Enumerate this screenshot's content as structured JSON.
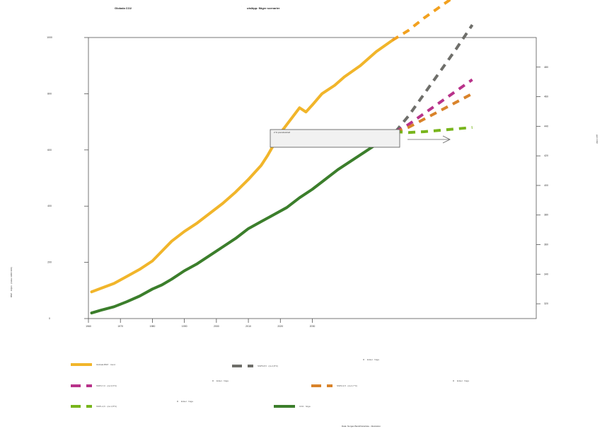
{
  "header": {
    "left_title": "Globala CO2",
    "right_title": "utsläpp: flägre scenarier",
    "dot": "·"
  },
  "axes": {
    "y_left_label": "BNP · miljön · (index 1960=100)",
    "y_right_label": "ppm CO2",
    "x_footer": "Data: Norges Bank/historiska · illustration"
  },
  "annotation": {
    "text": "2 % preindustriell"
  },
  "legend": [
    {
      "label": "Globala BNP · trend",
      "color": "#f1b52a",
      "style": "solid"
    },
    {
      "label": "SSP5-8,5 · (ca 4,8°C)",
      "color": "#6e6e6a",
      "style": "dashed"
    },
    {
      "label": "Enkel · höga",
      "color": "#bbbbbb",
      "style": "dot"
    },
    {
      "label": "SSP3-7,0 · (ca 3,6°C)",
      "color": "#b8338a",
      "style": "dashed"
    },
    {
      "label": "Enkel · höga",
      "color": "#bbbbbb",
      "style": "dot"
    },
    {
      "label": "SSP2-4,5 · (ca 2,7°C)",
      "color": "#d9832a",
      "style": "dashed"
    },
    {
      "label": "Enkel · höga",
      "color": "#bbbbbb",
      "style": "dot"
    },
    {
      "label": "SSP1-2,6 · (ca 1,8°C)",
      "color": "#78b51c",
      "style": "dashed"
    },
    {
      "label": "Enkel · höga",
      "color": "#bbbbbb",
      "style": "dot"
    },
    {
      "label": "CO2 · höga",
      "color": "#3b7e2b",
      "style": "solid"
    }
  ],
  "chart_data": {
    "type": "line",
    "title": "Globala CO2 utsläpp: flägre scenarier",
    "xlim": [
      1960,
      2100
    ],
    "ylim_left": [
      0,
      1000
    ],
    "ylim_right": [
      310,
      500
    ],
    "x_ticks": [
      1960,
      1970,
      1980,
      1990,
      2000,
      2010,
      2020,
      2030
    ],
    "x_tick_labels": [
      "1960",
      "1970",
      "1980",
      "1990",
      "2000",
      "2010",
      "2020",
      "2030"
    ],
    "y_left_ticks": [
      0,
      200,
      400,
      600,
      800,
      1000
    ],
    "y_right_ticks": [
      320,
      340,
      360,
      380,
      400,
      420,
      440,
      460,
      480
    ],
    "series": [
      {
        "name": "Globala BNP · trend",
        "color": "#f1b52a",
        "dash": "solid",
        "x": [
          1961,
          1964,
          1968,
          1972,
          1976,
          1980,
          1983,
          1986,
          1990,
          1994,
          1998,
          2002,
          2006,
          2010,
          2014,
          2016,
          2018,
          2020,
          2022,
          2024,
          2026,
          2028,
          2030,
          2033,
          2037,
          2040,
          2045,
          2050,
          2055
        ],
        "y": [
          95,
          108,
          125,
          150,
          175,
          205,
          240,
          275,
          310,
          340,
          375,
          410,
          450,
          495,
          545,
          580,
          620,
          660,
          690,
          720,
          750,
          735,
          760,
          800,
          830,
          860,
          900,
          950,
          990
        ]
      },
      {
        "name": "CO2 · höga",
        "color": "#3b7e2b",
        "dash": "solid",
        "x": [
          1961,
          1964,
          1968,
          1972,
          1976,
          1980,
          1983,
          1986,
          1990,
          1994,
          1998,
          2002,
          2006,
          2010,
          2014,
          2018,
          2022,
          2026,
          2030,
          2034,
          2038,
          2042,
          2046,
          2050,
          2054,
          2056
        ],
        "y": [
          20,
          30,
          42,
          60,
          80,
          105,
          120,
          140,
          170,
          195,
          225,
          255,
          285,
          320,
          345,
          370,
          395,
          430,
          460,
          495,
          530,
          560,
          590,
          620,
          650,
          665
        ]
      }
    ],
    "scenarios": [
      {
        "name": "SSP5-8,5 · (ca 4,8°C)",
        "color": "#f2a11f",
        "x": [
          2055,
          2060,
          2065,
          2070,
          2075,
          2080
        ],
        "y": [
          990,
          1025,
          1070,
          1110,
          1150,
          1195
        ]
      },
      {
        "name": "SSP5-8,5 · (ca 4,8°C)",
        "color": "#6e6e6a",
        "x": [
          2056,
          2060,
          2065,
          2070,
          2075,
          2080
        ],
        "y": [
          665,
          720,
          800,
          880,
          960,
          1045
        ]
      },
      {
        "name": "SSP3-7,0 · (ca 3,6°C)",
        "color": "#b8338a",
        "x": [
          2056,
          2060,
          2065,
          2070,
          2075,
          2080
        ],
        "y": [
          665,
          690,
          730,
          770,
          810,
          850
        ]
      },
      {
        "name": "SSP2-4,5 · (ca 2,7°C)",
        "color": "#d9832a",
        "x": [
          2056,
          2060,
          2065,
          2070,
          2075,
          2080
        ],
        "y": [
          665,
          680,
          710,
          740,
          770,
          800
        ]
      },
      {
        "name": "SSP1-2,6 · (ca 1,8°C)",
        "color": "#78b51c",
        "x": [
          2056,
          2060,
          2065,
          2070,
          2075,
          2080
        ],
        "y": [
          665,
          662,
          665,
          670,
          675,
          680
        ]
      }
    ]
  }
}
